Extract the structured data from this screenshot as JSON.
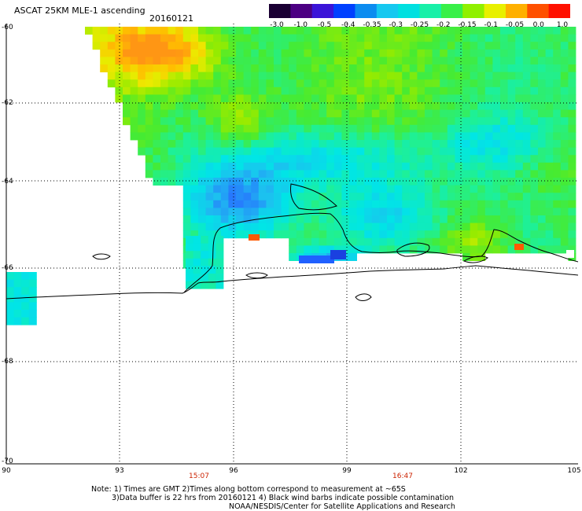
{
  "header": {
    "title": "ASCAT 25KM MLE-1 ascending",
    "date": "20160121"
  },
  "colorbar": {
    "labels": [
      "-3.0",
      "-1.0",
      "-0.5",
      "-0.4",
      "-0.35",
      "-0.3",
      "-0.25",
      "-0.2",
      "-0.15",
      "-0.1",
      "-0.05",
      "0.0",
      "1.0"
    ],
    "colors": [
      "#1a0033",
      "#4b0082",
      "#3a14d8",
      "#0040ff",
      "#0b8cf0",
      "#16c8f0",
      "#00e0e0",
      "#18f0a8",
      "#38f048",
      "#90f000",
      "#e8f000",
      "#ffb000",
      "#ff5000",
      "#ff1000"
    ]
  },
  "axes": {
    "lat_labels": [
      "-60",
      "-62",
      "-64",
      "-66",
      "-68",
      "-70"
    ],
    "lon_labels": [
      "90",
      "93",
      "96",
      "99",
      "102",
      "105"
    ]
  },
  "times": [
    "15:07",
    "16:47"
  ],
  "notes": {
    "line1": "Note: 1) Times are GMT 2)Times along bottom correspond to measurement at ~65S",
    "line2": "3)Data buffer is 22 hrs from 20160121 4) Black wind barbs indicate possible contamination",
    "line3": "NOAA/NESDIS/Center for Satellite Applications and Research"
  }
}
